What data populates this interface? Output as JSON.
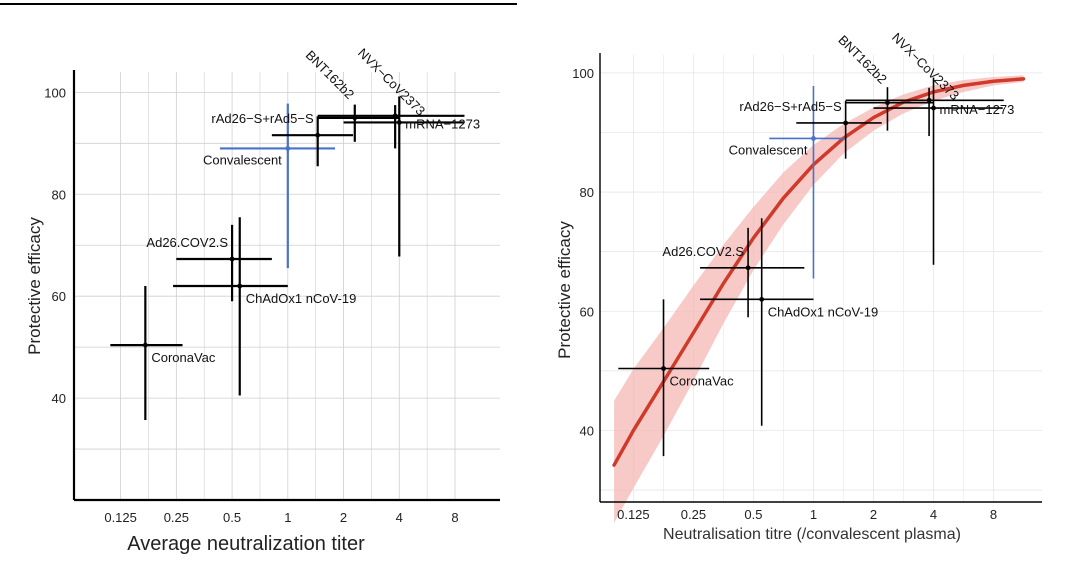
{
  "chart_data": [
    {
      "panel": "left",
      "type": "scatter",
      "xlabel": "Average neutralization titer",
      "ylabel": "Protective efficacy",
      "x_scale": "log2",
      "xlim": [
        0.07,
        14
      ],
      "ylim": [
        20,
        104
      ],
      "x_ticks": [
        0.125,
        0.25,
        0.5,
        1,
        2,
        4,
        8
      ],
      "x_tick_labels": [
        "0.125",
        "0.25",
        "0.5",
        "1",
        "2",
        "4",
        "8"
      ],
      "y_ticks": [
        40,
        60,
        80,
        100
      ],
      "y_tick_labels": [
        "40",
        "60",
        "80",
        "100"
      ],
      "grid": true,
      "fit_curve": false,
      "points": [
        {
          "label": "CoronaVac",
          "x": 0.17,
          "x_low": 0.11,
          "x_high": 0.27,
          "y": 50.4,
          "y_low": 35.7,
          "y_high": 62.0,
          "color": "#000000",
          "label_pos": "below-right"
        },
        {
          "label": "ChAdOx1 nCoV-19",
          "x": 0.55,
          "x_low": 0.24,
          "x_high": 1.0,
          "y": 62.0,
          "y_low": 40.5,
          "y_high": 75.5,
          "color": "#000000",
          "label_pos": "below-right"
        },
        {
          "label": "Ad26.COV2.S",
          "x": 0.5,
          "x_low": 0.25,
          "x_high": 0.82,
          "y": 67.3,
          "y_low": 59.0,
          "y_high": 74.0,
          "color": "#000000",
          "label_pos": "above-left"
        },
        {
          "label": "Convalescent",
          "x": 1.0,
          "x_low": 0.43,
          "x_high": 1.8,
          "y": 89.0,
          "y_low": 65.5,
          "y_high": 97.8,
          "color": "#4a72c8",
          "label_pos": "below-left"
        },
        {
          "label": "rAd26−S+rAd5−S",
          "x": 1.45,
          "x_low": 0.82,
          "x_high": 2.25,
          "y": 91.6,
          "y_low": 85.5,
          "y_high": 95.3,
          "color": "#000000",
          "label_pos": "above-left"
        },
        {
          "label": "BNT162b2",
          "x": 2.3,
          "x_low": 1.45,
          "x_high": 4.0,
          "y": 95.0,
          "y_low": 90.3,
          "y_high": 97.6,
          "color": "#000000",
          "label_pos": "above-left"
        },
        {
          "label": "NVX−CoV2373",
          "x": 3.8,
          "x_low": 1.45,
          "x_high": 9.0,
          "y": 95.4,
          "y_low": 89.0,
          "y_high": 97.5,
          "color": "#000000",
          "label_pos": "above-right"
        },
        {
          "label": "mRNA−1273",
          "x": 4.0,
          "x_low": 2.0,
          "x_high": 8.9,
          "y": 94.1,
          "y_low": 67.8,
          "y_high": 99.2,
          "color": "#000000",
          "label_pos": "right"
        }
      ]
    },
    {
      "panel": "right",
      "type": "scatter",
      "xlabel": "Neutralisation titre (/convalescent plasma)",
      "ylabel": "Protective efficacy",
      "x_scale": "log2",
      "xlim": [
        0.085,
        14
      ],
      "ylim": [
        28,
        103
      ],
      "x_ticks": [
        0.125,
        0.25,
        0.5,
        1,
        2,
        4,
        8
      ],
      "x_tick_labels": [
        "0.125",
        "0.25",
        "0.5",
        "1",
        "2",
        "4",
        "8"
      ],
      "y_ticks": [
        40,
        60,
        80,
        100
      ],
      "y_tick_labels": [
        "40",
        "60",
        "80",
        "100"
      ],
      "grid": true,
      "fit_curve": true,
      "curve_color": "#d03a2a",
      "band_color": "#f4b8b4",
      "curve": {
        "x": [
          0.1,
          0.125,
          0.177,
          0.25,
          0.354,
          0.5,
          0.707,
          1.0,
          1.41,
          2.0,
          2.83,
          4.0,
          5.66,
          8.0,
          11.3
        ],
        "y": [
          34.2,
          40.0,
          48.2,
          56.4,
          64.7,
          72.3,
          79.0,
          84.6,
          89.0,
          92.5,
          95.1,
          96.8,
          97.9,
          98.6,
          99.0
        ],
        "y_low": [
          24.5,
          30.3,
          39.1,
          48.3,
          58.0,
          66.9,
          74.6,
          81.2,
          86.4,
          90.3,
          93.2,
          95.3,
          96.8,
          97.9,
          98.5
        ],
        "y_high": [
          45.0,
          50.3,
          57.2,
          64.3,
          71.2,
          77.5,
          83.3,
          87.9,
          91.4,
          94.2,
          96.4,
          97.9,
          98.8,
          99.3,
          99.6
        ]
      },
      "points": [
        {
          "label": "CoronaVac",
          "x": 0.177,
          "x_low": 0.105,
          "x_high": 0.3,
          "y": 50.4,
          "y_low": 35.7,
          "y_high": 62.0,
          "color": "#000000",
          "label_pos": "below-right"
        },
        {
          "label": "ChAdOx1 nCoV-19",
          "x": 0.55,
          "x_low": 0.27,
          "x_high": 1.0,
          "y": 62.0,
          "y_low": 40.8,
          "y_high": 75.6,
          "color": "#000000",
          "label_pos": "below-right"
        },
        {
          "label": "Ad26.COV2.S",
          "x": 0.47,
          "x_low": 0.27,
          "x_high": 0.9,
          "y": 67.3,
          "y_low": 59.0,
          "y_high": 74.0,
          "color": "#000000",
          "label_pos": "above-left"
        },
        {
          "label": "Convalescent",
          "x": 1.0,
          "x_low": 0.6,
          "x_high": 1.45,
          "y": 89.0,
          "y_low": 65.5,
          "y_high": 97.8,
          "color": "#4a72c8",
          "label_pos": "below-left"
        },
        {
          "label": "rAd26−S+rAd5−S",
          "x": 1.45,
          "x_low": 0.82,
          "x_high": 2.2,
          "y": 91.6,
          "y_low": 85.6,
          "y_high": 95.3,
          "color": "#000000",
          "label_pos": "above-left"
        },
        {
          "label": "BNT162b2",
          "x": 2.35,
          "x_low": 1.45,
          "x_high": 4.0,
          "y": 95.0,
          "y_low": 90.3,
          "y_high": 97.6,
          "color": "#000000",
          "label_pos": "above-left"
        },
        {
          "label": "NVX−CoV2373",
          "x": 3.8,
          "x_low": 1.45,
          "x_high": 9.0,
          "y": 95.4,
          "y_low": 89.4,
          "y_high": 97.5,
          "color": "#000000",
          "label_pos": "above-right"
        },
        {
          "label": "mRNA−1273",
          "x": 4.0,
          "x_low": 2.0,
          "x_high": 8.9,
          "y": 94.1,
          "y_low": 67.8,
          "y_high": 99.2,
          "color": "#000000",
          "label_pos": "right"
        }
      ]
    }
  ]
}
